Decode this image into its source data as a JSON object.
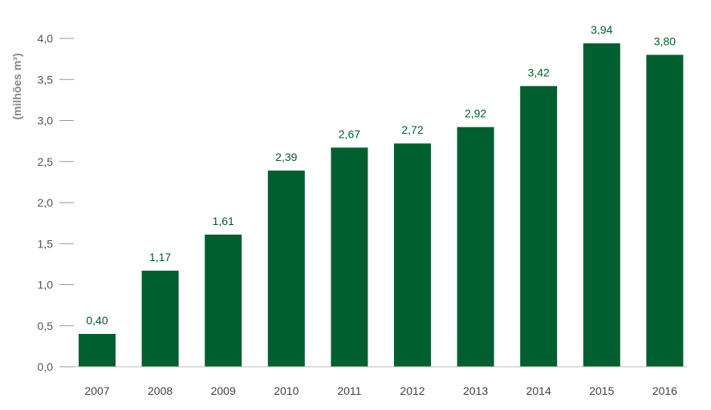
{
  "chart_data": {
    "type": "bar",
    "ylabel": "(milhões m³)",
    "categories": [
      "2007",
      "2008",
      "2009",
      "2010",
      "2011",
      "2012",
      "2013",
      "2014",
      "2015",
      "2016"
    ],
    "values": [
      0.4,
      1.17,
      1.61,
      2.39,
      2.67,
      2.72,
      2.92,
      3.42,
      3.94,
      3.8
    ],
    "value_labels": [
      "0,40",
      "1,17",
      "1,61",
      "2,39",
      "2,67",
      "2,72",
      "2,92",
      "3,42",
      "3,94",
      "3,80"
    ],
    "yticks": [
      0,
      0.5,
      1.0,
      1.5,
      2.0,
      2.5,
      3.0,
      3.5,
      4.0
    ],
    "ytick_labels": [
      "0,0",
      "0,5",
      "1,0",
      "1,5",
      "2,0",
      "2,5",
      "3,0",
      "3,5",
      "4,0"
    ],
    "ylim": [
      0,
      4.0
    ],
    "grid": false,
    "legend": "none",
    "bar_color": "#005f2e",
    "label_color": "#005f2e"
  }
}
